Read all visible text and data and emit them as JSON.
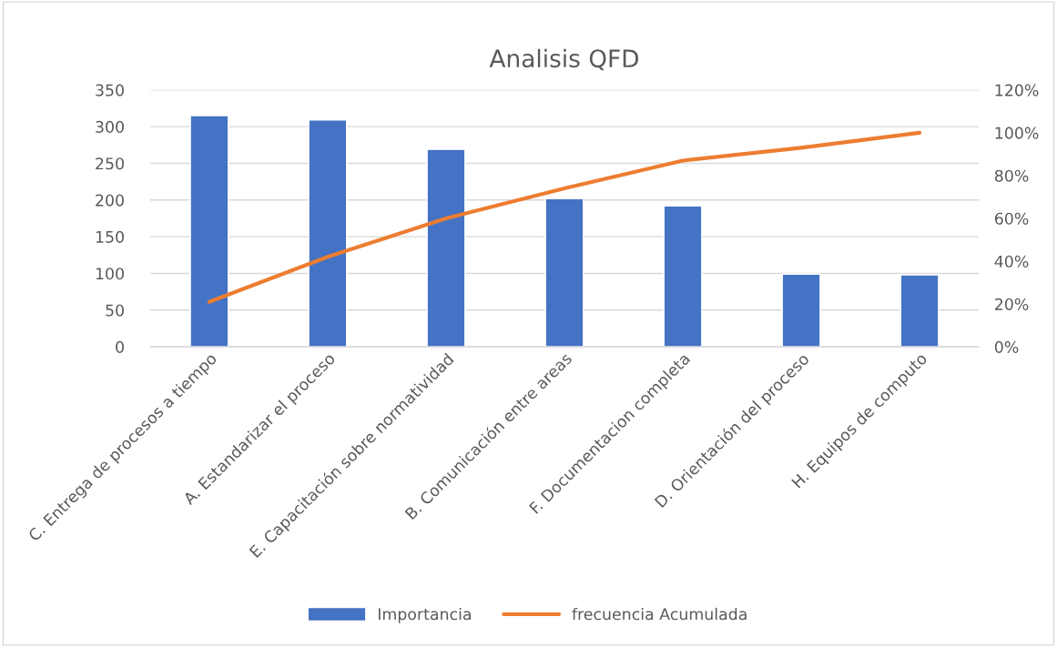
{
  "chart_data": {
    "type": "bar",
    "title": "Analisis QFD",
    "categories": [
      "C. Entrega de procesos a tiempo",
      "A. Estandarizar el proceso",
      "E. Capacitación sobre normatividad",
      "B. Comunicación entre areas",
      "F. Documentacion completa",
      "D. Orientación del proceso",
      "H. Equipos de computo"
    ],
    "series": [
      {
        "name": "Importancia",
        "color": "#4472c4",
        "values": [
          315,
          309,
          269,
          202,
          192,
          99,
          98
        ]
      },
      {
        "name": "frecuencia Acumulada",
        "type": "line",
        "axis": "y2",
        "color": "#ed7d31",
        "values": [
          21,
          42,
          60,
          74,
          87,
          93,
          100
        ]
      }
    ],
    "ylim": [
      0,
      350
    ],
    "yticks": [
      0,
      50,
      100,
      150,
      200,
      250,
      300,
      350
    ],
    "y2lim": [
      0,
      120
    ],
    "y2ticks": [
      {
        "value": 0,
        "label": "0%"
      },
      {
        "value": 20,
        "label": "20%"
      },
      {
        "value": 40,
        "label": "40%"
      },
      {
        "value": 60,
        "label": "60%"
      },
      {
        "value": 80,
        "label": "80%"
      },
      {
        "value": 100,
        "label": "100%"
      },
      {
        "value": 120,
        "label": "120%"
      }
    ],
    "grid": "y",
    "legend": "bottom",
    "marker": "none",
    "line_style": "solid"
  }
}
